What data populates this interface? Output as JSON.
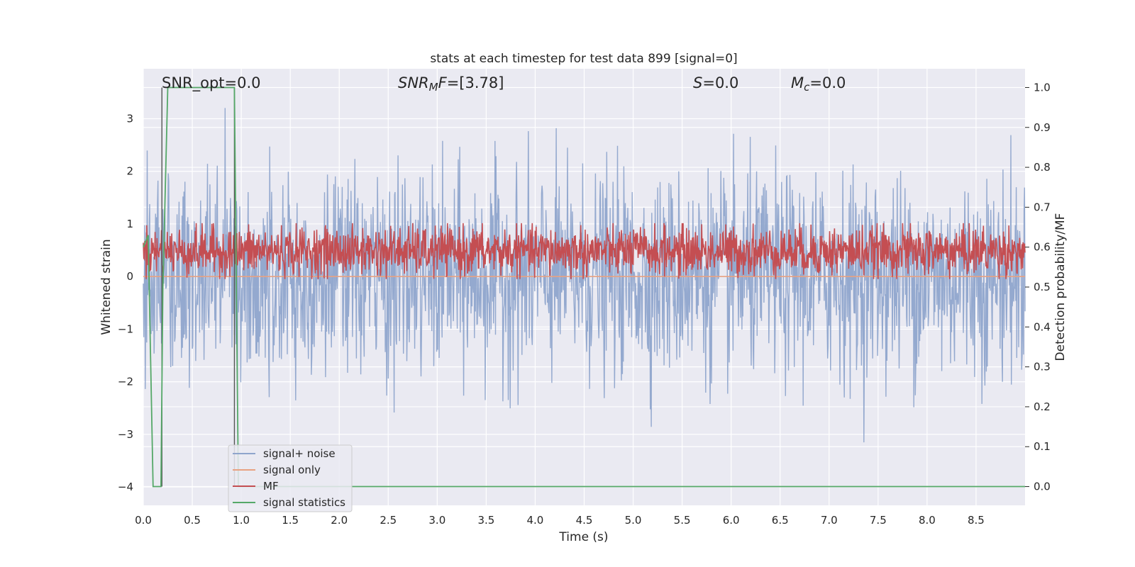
{
  "chart_data": {
    "type": "line",
    "title": "stats at each timestep for test data 899 [signal=0]",
    "xlabel": "Time (s)",
    "ylabel": "Whitened strain",
    "y2label": "Detection probability/MF",
    "xlim": [
      0.0,
      9.0
    ],
    "ylim": [
      -4.35,
      3.95
    ],
    "y2lim": [
      -0.047,
      1.047
    ],
    "x_ticks": [
      "0.0",
      "0.5",
      "1.0",
      "1.5",
      "2.0",
      "2.5",
      "3.0",
      "3.5",
      "4.0",
      "4.5",
      "5.0",
      "5.5",
      "6.0",
      "6.5",
      "7.0",
      "7.5",
      "8.0",
      "8.5"
    ],
    "y_ticks": [
      "3",
      "2",
      "1",
      "0",
      "−1",
      "−2",
      "−3",
      "−4"
    ],
    "y2_ticks": [
      "1.0",
      "0.9",
      "0.8",
      "0.7",
      "0.6",
      "0.5",
      "0.4",
      "0.3",
      "0.2",
      "0.1",
      "0.0"
    ],
    "grid": true,
    "legend_position": "lower-left",
    "annotations": {
      "snr_opt": "SNR_opt=0.0",
      "snr_mf_italic": "SNR",
      "snr_mf_sub": "M",
      "snr_mf_italic2": "F",
      "snr_mf_rest": "=[3.78]",
      "s_italic": "S",
      "s_rest": "=0.0",
      "mc_italic": "M",
      "mc_sub": "c",
      "mc_rest": "=0.0"
    },
    "series": [
      {
        "name": "signal+ noise",
        "color": "#8fa5cc",
        "axis": "left",
        "description_range": [
          -4.0,
          3.5
        ],
        "sample_rate_hz": 200,
        "noise_sigma": 0.95
      },
      {
        "name": "signal only",
        "color": "#e8a282",
        "axis": "left",
        "x": [
          0.0,
          9.0
        ],
        "y": [
          0.0,
          0.0
        ]
      },
      {
        "name": "MF",
        "color": "#c44e52",
        "axis": "right",
        "range": [
          0.52,
          0.66
        ],
        "sample_rate_hz": 200
      },
      {
        "name": "signal statistics",
        "color": "#55a868",
        "axis": "right",
        "x": [
          0.0,
          0.05,
          0.1,
          0.12,
          0.18,
          0.2,
          0.25,
          0.93,
          0.97,
          1.0,
          9.0
        ],
        "y": [
          0.6,
          0.63,
          0.0,
          0.0,
          0.0,
          0.5,
          1.0,
          1.0,
          0.0,
          0.0,
          0.0
        ]
      }
    ],
    "vertical_lines": [
      {
        "x": 0.19,
        "y2_range": [
          0.0,
          1.0
        ]
      },
      {
        "x": 0.93,
        "y2_range": [
          0.0,
          1.0
        ]
      }
    ],
    "background": "#eaeaf2"
  }
}
